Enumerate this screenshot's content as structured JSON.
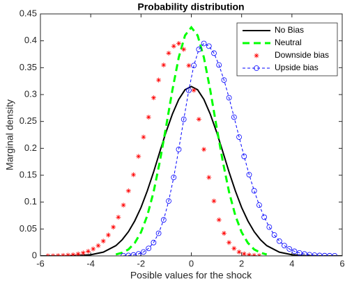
{
  "chart_data": {
    "type": "line",
    "title": "Probability distribution",
    "xlabel": "Posible values for the shock",
    "ylabel": "Marginal density",
    "xlim": [
      -6,
      6
    ],
    "xticks": [
      -6,
      -4,
      -2,
      0,
      2,
      4,
      6
    ],
    "ylim": [
      0,
      0.45
    ],
    "yticks": [
      0,
      0.05,
      0.1,
      0.15,
      0.2,
      0.25,
      0.3,
      0.35,
      0.4,
      0.45
    ],
    "grid": false,
    "legend_position": "northeast",
    "series": [
      {
        "name": "No Bias",
        "color": "#000000",
        "line_style": "solid",
        "marker": "none",
        "x": [
          -6,
          -5.5,
          -5,
          -4.5,
          -4,
          -3.5,
          -3,
          -2.75,
          -2.5,
          -2.25,
          -2,
          -1.75,
          -1.5,
          -1.25,
          -1,
          -0.75,
          -0.5,
          -0.25,
          0,
          0.25,
          0.5,
          0.75,
          1,
          1.25,
          1.5,
          1.75,
          2,
          2.25,
          2.5,
          2.75,
          3,
          3.5,
          4,
          4.5,
          5,
          5.5,
          6
        ],
        "values": [
          0,
          0,
          0.0001,
          0.0006,
          0.0021,
          0.0069,
          0.019,
          0.03,
          0.045,
          0.065,
          0.09,
          0.121,
          0.156,
          0.194,
          0.231,
          0.264,
          0.291,
          0.309,
          0.315,
          0.309,
          0.291,
          0.264,
          0.231,
          0.194,
          0.156,
          0.121,
          0.09,
          0.065,
          0.045,
          0.03,
          0.019,
          0.0069,
          0.0021,
          0.0006,
          0.0001,
          0,
          0
        ]
      },
      {
        "name": "Neutral",
        "color": "#00ff00",
        "line_style": "dashed",
        "marker": "none",
        "x": [
          -3,
          -2.75,
          -2.5,
          -2.25,
          -2,
          -1.75,
          -1.5,
          -1.25,
          -1,
          -0.75,
          -0.5,
          -0.25,
          0,
          0.25,
          0.5,
          0.75,
          1,
          1.25,
          1.5,
          1.75,
          2,
          2.25,
          2.5,
          2.75,
          3
        ],
        "values": [
          0.0026,
          0.0059,
          0.012,
          0.024,
          0.044,
          0.075,
          0.119,
          0.176,
          0.241,
          0.309,
          0.369,
          0.41,
          0.425,
          0.41,
          0.369,
          0.309,
          0.241,
          0.176,
          0.119,
          0.075,
          0.044,
          0.024,
          0.012,
          0.0059,
          0.0026
        ]
      },
      {
        "name": "Downside bias",
        "color": "#ff0000",
        "line_style": "none",
        "marker": "asterisk",
        "x": [
          -5.7,
          -5.5,
          -5.3,
          -5.1,
          -4.9,
          -4.7,
          -4.5,
          -4.3,
          -4.1,
          -3.9,
          -3.7,
          -3.5,
          -3.3,
          -3.1,
          -2.9,
          -2.7,
          -2.5,
          -2.3,
          -2.1,
          -1.9,
          -1.7,
          -1.5,
          -1.3,
          -1.1,
          -0.9,
          -0.7,
          -0.5,
          -0.3,
          -0.1,
          0.1,
          0.3,
          0.5,
          0.7,
          0.9,
          1.1,
          1.3,
          1.5,
          1.7,
          1.9,
          2.1,
          2.3,
          2.5,
          2.7
        ],
        "values": [
          0.00013,
          0.00024,
          0.00043,
          0.00075,
          0.0013,
          0.0021,
          0.0035,
          0.0055,
          0.0085,
          0.0129,
          0.0191,
          0.0275,
          0.0388,
          0.0535,
          0.0719,
          0.0944,
          0.121,
          0.151,
          0.185,
          0.221,
          0.258,
          0.294,
          0.327,
          0.355,
          0.377,
          0.39,
          0.395,
          0.384,
          0.354,
          0.308,
          0.254,
          0.198,
          0.146,
          0.102,
          0.067,
          0.042,
          0.0248,
          0.0139,
          0.0073,
          0.0037,
          0.0017,
          0.0008,
          0.0003
        ]
      },
      {
        "name": "Upside bias",
        "color": "#0000ff",
        "line_style": "dashed-thin",
        "marker": "circle",
        "x": [
          -2.7,
          -2.5,
          -2.3,
          -2.1,
          -1.9,
          -1.7,
          -1.5,
          -1.3,
          -1.1,
          -0.9,
          -0.7,
          -0.5,
          -0.3,
          -0.1,
          0.1,
          0.3,
          0.5,
          0.7,
          0.9,
          1.1,
          1.3,
          1.5,
          1.7,
          1.9,
          2.1,
          2.3,
          2.5,
          2.7,
          2.9,
          3.1,
          3.3,
          3.5,
          3.7,
          3.9,
          4.1,
          4.3,
          4.5,
          4.7,
          4.9,
          5.1,
          5.3,
          5.5,
          5.7
        ],
        "values": [
          0.0003,
          0.0008,
          0.0017,
          0.0037,
          0.0073,
          0.0139,
          0.0248,
          0.042,
          0.067,
          0.102,
          0.146,
          0.198,
          0.254,
          0.308,
          0.354,
          0.384,
          0.395,
          0.39,
          0.377,
          0.355,
          0.327,
          0.294,
          0.258,
          0.221,
          0.185,
          0.151,
          0.121,
          0.0944,
          0.0719,
          0.0535,
          0.0388,
          0.0275,
          0.0191,
          0.0129,
          0.0085,
          0.0055,
          0.0035,
          0.0021,
          0.0013,
          0.00075,
          0.00043,
          0.00024,
          0.00013
        ]
      }
    ]
  }
}
